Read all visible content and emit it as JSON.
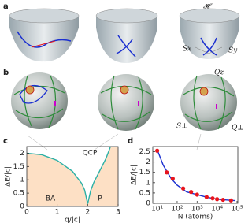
{
  "figure": {
    "panel_labels": [
      "a",
      "b"
    ],
    "hamiltonian": "𝓗",
    "sx": "Sx",
    "sy": "Sy",
    "qz": "Qz",
    "sperp": "S⊥",
    "qperp": "Q⊥"
  },
  "chart_data": [
    {
      "type": "line",
      "label": "c",
      "xlabel": "q/|c|",
      "ylabel": "ΔE/|c|",
      "xlim": [
        0,
        3
      ],
      "ylim": [
        0,
        2.25
      ],
      "xticks": [
        0,
        1,
        2,
        3
      ],
      "yticks": [
        0,
        0.5,
        1,
        1.5,
        2
      ],
      "annotations": [
        "QCP",
        "BA",
        "P"
      ],
      "series": [
        {
          "color": "#2bb0a6",
          "fill": "#fde0c5",
          "x": [
            0,
            0.5,
            1,
            1.5,
            1.8,
            1.9,
            2.0,
            2.1,
            2.2,
            2.4,
            2.6,
            2.75
          ],
          "values": [
            2.0,
            1.94,
            1.73,
            1.32,
            0.87,
            0.62,
            0.1,
            0.6,
            0.9,
            1.35,
            1.8,
            2.25
          ]
        }
      ]
    },
    {
      "type": "scatter",
      "label": "d",
      "xlabel": "N (atoms)",
      "ylabel": "ΔE/|c|",
      "xscale": "log",
      "xlim": [
        6,
        110000
      ],
      "ylim": [
        0,
        2.75
      ],
      "xticks": [
        {
          "value": 10,
          "label": "10¹"
        },
        {
          "value": 100,
          "label": "10²"
        },
        {
          "value": 1000,
          "label": "10³"
        },
        {
          "value": 10000,
          "label": "10⁴"
        },
        {
          "value": 100000,
          "label": "10⁵"
        }
      ],
      "yticks": [
        0,
        0.5,
        1,
        1.5,
        2,
        2.5
      ],
      "series": [
        {
          "color": "#e8141c",
          "mode": "points",
          "x": [
            10,
            30,
            60,
            200,
            500,
            1000,
            3000,
            6000,
            10000,
            20000,
            50000
          ],
          "values": [
            2.55,
            1.5,
            1.2,
            0.72,
            0.55,
            0.42,
            0.3,
            0.24,
            0.2,
            0.17,
            0.14
          ]
        },
        {
          "color": "#1a2fd0",
          "mode": "line",
          "x": [
            10,
            20,
            50,
            100,
            300,
            1000,
            3000,
            10000,
            30000,
            80000
          ],
          "values": [
            2.6,
            1.85,
            1.2,
            0.88,
            0.55,
            0.42,
            0.3,
            0.2,
            0.16,
            0.13
          ]
        }
      ]
    }
  ]
}
